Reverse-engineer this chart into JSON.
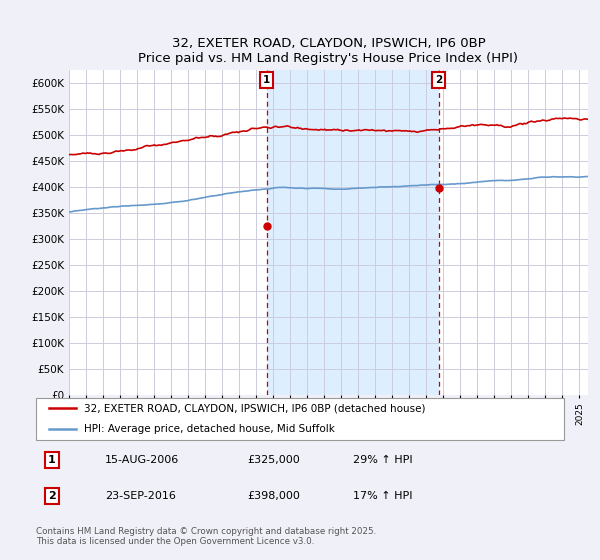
{
  "title": "32, EXETER ROAD, CLAYDON, IPSWICH, IP6 0BP",
  "subtitle": "Price paid vs. HM Land Registry's House Price Index (HPI)",
  "ylabel_ticks": [
    "£0",
    "£50K",
    "£100K",
    "£150K",
    "£200K",
    "£250K",
    "£300K",
    "£350K",
    "£400K",
    "£450K",
    "£500K",
    "£550K",
    "£600K"
  ],
  "ylim": [
    0,
    625000
  ],
  "yticks": [
    0,
    50000,
    100000,
    150000,
    200000,
    250000,
    300000,
    350000,
    400000,
    450000,
    500000,
    550000,
    600000
  ],
  "xlim_start": 1995.0,
  "xlim_end": 2025.5,
  "hpi_color": "#6699cc",
  "price_color": "#cc0000",
  "bg_color": "#f0f0f8",
  "plot_bg": "#ffffff",
  "grid_color": "#ccccdd",
  "shade_color": "#ddeeff",
  "marker1_x": 2006.62,
  "marker1_y": 325000,
  "marker1_label": "1",
  "marker2_x": 2016.73,
  "marker2_y": 398000,
  "marker2_label": "2",
  "legend_line1": "32, EXETER ROAD, CLAYDON, IPSWICH, IP6 0BP (detached house)",
  "legend_line2": "HPI: Average price, detached house, Mid Suffolk",
  "table_row1": [
    "1",
    "15-AUG-2006",
    "£325,000",
    "29% ↑ HPI"
  ],
  "table_row2": [
    "2",
    "23-SEP-2016",
    "£398,000",
    "17% ↑ HPI"
  ],
  "footnote": "Contains HM Land Registry data © Crown copyright and database right 2025.\nThis data is licensed under the Open Government Licence v3.0."
}
